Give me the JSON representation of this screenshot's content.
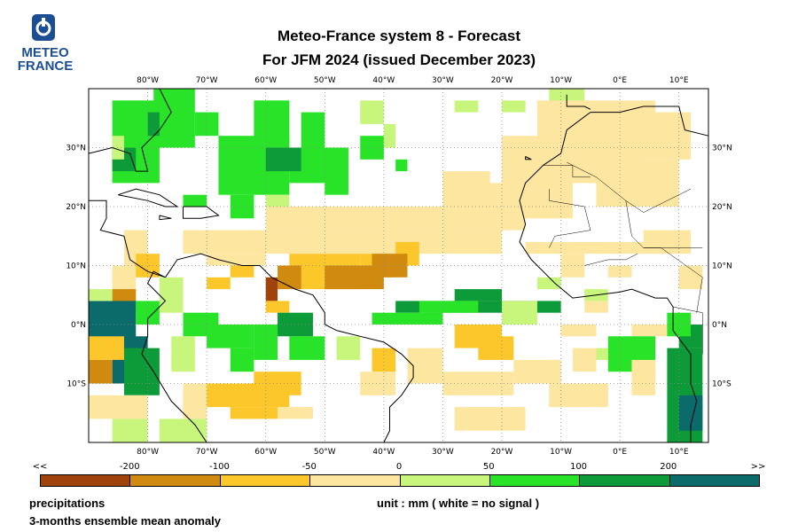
{
  "logo": {
    "line1": "METEO",
    "line2": "FRANCE",
    "icon": "meteo-france-logo-icon"
  },
  "title": {
    "line1": "Meteo-France system 8  -  Forecast",
    "line2": "For JFM 2024      (issued December 2023)"
  },
  "map": {
    "lon_ticks": [
      "80°W",
      "70°W",
      "60°W",
      "50°W",
      "40°W",
      "30°W",
      "20°W",
      "10°W",
      "0°E",
      "10°E"
    ],
    "lat_ticks_left": [
      "30°N",
      "20°N",
      "10°N",
      "0°N",
      "10°S"
    ],
    "lat_ticks_right": [
      "30°N",
      "20°N",
      "10°N",
      "0°N",
      "10°S"
    ],
    "lon_range": [
      -90,
      15
    ],
    "lat_range": [
      -20,
      40
    ]
  },
  "colorbar": {
    "labels": [
      "<<",
      "-200",
      "-100",
      "-50",
      "0",
      "50",
      "100",
      "200",
      ">>"
    ],
    "colors": [
      "#a0420b",
      "#d08a10",
      "#fcc72a",
      "#fde6a0",
      "#c8f57c",
      "#28e328",
      "#0c9b38",
      "#0b6b6a"
    ]
  },
  "footer": {
    "variable": "precipitations",
    "description": "3-months ensemble mean anomaly",
    "unit": "unit : mm  ( white = no signal )"
  }
}
